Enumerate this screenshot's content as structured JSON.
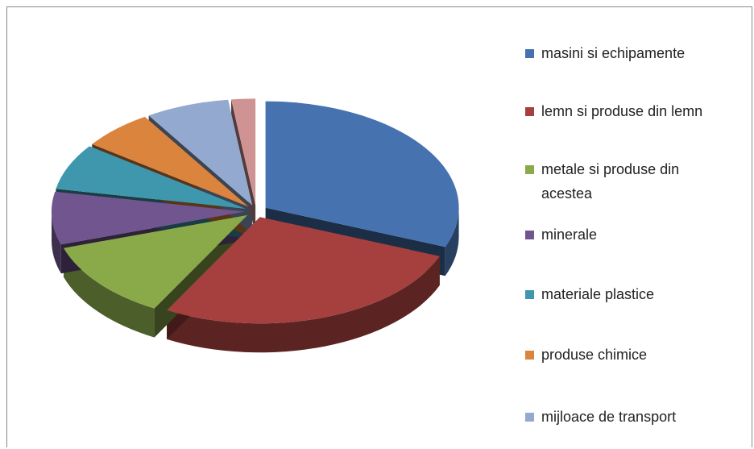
{
  "chart_data": {
    "type": "pie",
    "categories": [
      "masini si echipamente",
      "lemn si produse din lemn",
      "metale si produse din acestea",
      "minerale",
      "materiale plastice",
      "produse chimice",
      "mijloace de transport",
      null
    ],
    "values": [
      31,
      27,
      12,
      8,
      7,
      6,
      7,
      2
    ],
    "colors": [
      "#4672b0",
      "#a5403e",
      "#8aaa4a",
      "#70558e",
      "#3e97ad",
      "#db843d",
      "#93a9cf",
      "#d09393"
    ],
    "legend": "right"
  }
}
